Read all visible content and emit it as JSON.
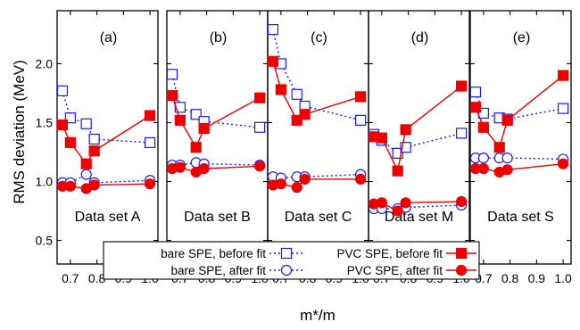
{
  "chart_data": {
    "type": "line",
    "xlabel": "m*/m",
    "ylabel": "RMS deviation (MeV)",
    "ylim": [
      0.3,
      2.45
    ],
    "xlim": [
      0.65,
      1.03
    ],
    "yticks": [
      0.5,
      1.0,
      1.5,
      2.0
    ],
    "ytick_labels": [
      "0.5",
      "1.0",
      "1.5",
      "2.0"
    ],
    "xticks": [
      0.7,
      0.8,
      0.9,
      1.0
    ],
    "xtick_labels": [
      "0.7",
      "0.8",
      "0.9",
      "1.0"
    ],
    "grid": false,
    "colors": {
      "bare": "#1a1aff",
      "pvc": "#ee0000",
      "frame": "#000000"
    },
    "legend": {
      "placement": "bottom-center",
      "entries": [
        {
          "series": "bare_before",
          "label": "bare SPE, before fit"
        },
        {
          "series": "bare_after",
          "label": "bare SPE, after fit"
        },
        {
          "series": "pvc_before",
          "label": "PVC SPE, before fit"
        },
        {
          "series": "pvc_after",
          "label": "PVC SPE, after fit"
        }
      ]
    },
    "panels": [
      {
        "tag": "(a)",
        "dataset": "Data set A",
        "x": [
          0.67,
          0.7,
          0.76,
          0.79,
          1.0
        ],
        "series": {
          "bare_before": [
            1.77,
            1.54,
            1.49,
            1.36,
            1.33
          ],
          "bare_after": [
            0.99,
            0.99,
            1.06,
            0.99,
            1.01
          ],
          "pvc_before": [
            1.48,
            1.33,
            1.15,
            1.26,
            1.56
          ],
          "pvc_after": [
            0.96,
            0.96,
            0.94,
            0.97,
            0.98
          ]
        }
      },
      {
        "tag": "(b)",
        "dataset": "Data set B",
        "x": [
          0.67,
          0.7,
          0.76,
          0.79,
          1.0
        ],
        "series": {
          "bare_before": [
            1.91,
            1.63,
            1.57,
            1.51,
            1.46
          ],
          "bare_after": [
            1.14,
            1.14,
            1.16,
            1.15,
            1.14
          ],
          "pvc_before": [
            1.73,
            1.52,
            1.29,
            1.45,
            1.71
          ],
          "pvc_after": [
            1.11,
            1.12,
            1.08,
            1.11,
            1.13
          ]
        }
      },
      {
        "tag": "(c)",
        "dataset": "Data set C",
        "x": [
          0.67,
          0.7,
          0.76,
          0.79,
          1.0
        ],
        "series": {
          "bare_before": [
            2.29,
            2.0,
            1.74,
            1.64,
            1.52
          ],
          "bare_after": [
            1.04,
            1.03,
            1.04,
            1.04,
            1.06
          ],
          "pvc_before": [
            2.02,
            1.78,
            1.52,
            1.57,
            1.72
          ],
          "pvc_after": [
            0.97,
            0.98,
            0.95,
            1.02,
            1.02
          ]
        }
      },
      {
        "tag": "(d)",
        "dataset": "Data set M",
        "x": [
          0.67,
          0.7,
          0.76,
          0.79,
          1.0
        ],
        "series": {
          "bare_before": [
            1.4,
            1.35,
            1.24,
            1.29,
            1.41
          ],
          "bare_after": [
            0.77,
            0.77,
            0.77,
            0.78,
            0.8
          ],
          "pvc_before": [
            1.38,
            1.37,
            1.09,
            1.44,
            1.81
          ],
          "pvc_after": [
            0.81,
            0.82,
            0.75,
            0.82,
            0.83
          ]
        }
      },
      {
        "tag": "(e)",
        "dataset": "Data set S",
        "x": [
          0.67,
          0.7,
          0.76,
          0.79,
          1.0
        ],
        "series": {
          "bare_before": [
            1.76,
            1.58,
            1.54,
            1.53,
            1.62
          ],
          "bare_after": [
            1.2,
            1.2,
            1.2,
            1.2,
            1.19
          ],
          "pvc_before": [
            1.63,
            1.46,
            1.29,
            1.52,
            1.9
          ],
          "pvc_after": [
            1.11,
            1.11,
            1.08,
            1.1,
            1.15
          ]
        }
      }
    ]
  }
}
